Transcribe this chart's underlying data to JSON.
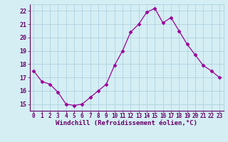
{
  "x": [
    0,
    1,
    2,
    3,
    4,
    5,
    6,
    7,
    8,
    9,
    10,
    11,
    12,
    13,
    14,
    15,
    16,
    17,
    18,
    19,
    20,
    21,
    22,
    23
  ],
  "y": [
    17.5,
    16.7,
    16.5,
    15.9,
    15.0,
    14.9,
    15.0,
    15.5,
    16.0,
    16.5,
    17.9,
    19.0,
    20.4,
    21.0,
    21.9,
    22.2,
    21.1,
    21.5,
    20.5,
    19.5,
    18.7,
    17.9,
    17.5,
    17.0
  ],
  "line_color": "#990099",
  "marker": "D",
  "marker_size": 2.5,
  "bg_color": "#d4eef4",
  "grid_color": "#aaccdd",
  "xlabel": "Windchill (Refroidissement éolien,°C)",
  "xlabel_color": "#660066",
  "tick_color": "#660066",
  "ylim": [
    14.5,
    22.5
  ],
  "xlim": [
    -0.5,
    23.5
  ],
  "yticks": [
    15,
    16,
    17,
    18,
    19,
    20,
    21,
    22
  ],
  "xticks": [
    0,
    1,
    2,
    3,
    4,
    5,
    6,
    7,
    8,
    9,
    10,
    11,
    12,
    13,
    14,
    15,
    16,
    17,
    18,
    19,
    20,
    21,
    22,
    23
  ]
}
